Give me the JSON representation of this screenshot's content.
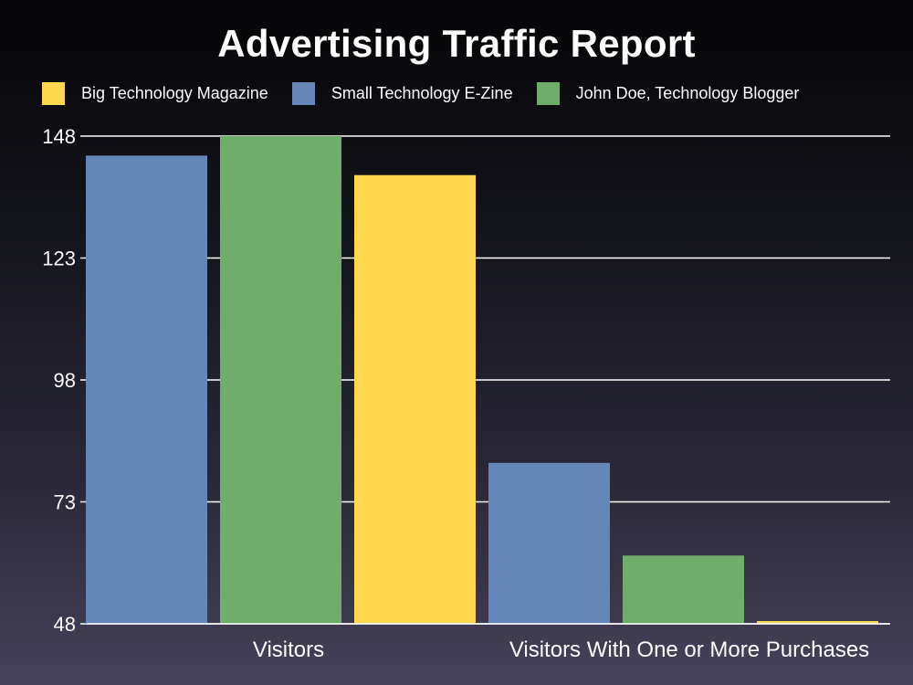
{
  "chart_data": {
    "type": "bar",
    "title": "Advertising Traffic Report",
    "xlabel": "",
    "ylabel": "",
    "categories": [
      "Visitors",
      "Visitors With One or More Purchases"
    ],
    "series": [
      {
        "name": "Big Technology Magazine",
        "color": "#ffd84f",
        "values": [
          140,
          48.5
        ]
      },
      {
        "name": "Small Technology E-Zine",
        "color": "#6786b8",
        "values": [
          144,
          81
        ]
      },
      {
        "name": "John Doe, Technology Blogger",
        "color": "#6fad6b",
        "values": [
          148,
          62
        ]
      }
    ],
    "ylim": [
      48,
      148
    ],
    "yticks": [
      "48",
      "73",
      "98",
      "123",
      "148"
    ],
    "grid": true,
    "legend_position": "top"
  }
}
